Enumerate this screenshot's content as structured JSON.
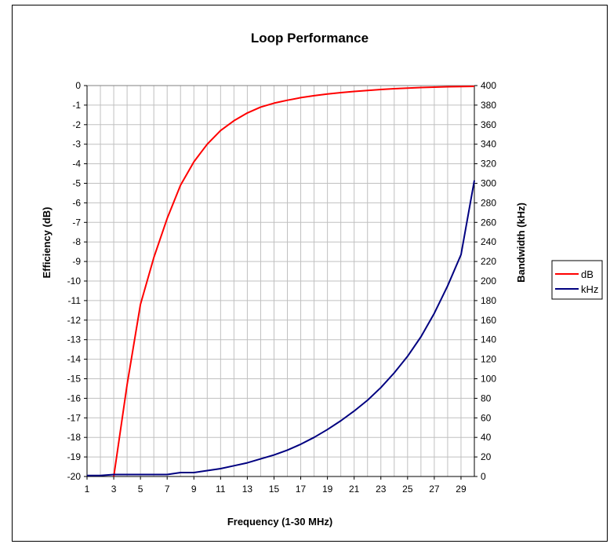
{
  "chart_data": {
    "type": "line",
    "title": "Loop Performance",
    "xlabel": "Frequency (1-30 MHz)",
    "ylabel_left": "Efficiency (dB)",
    "ylabel_right": "Bandwidth (kHz)",
    "x_ticks": [
      "1",
      "3",
      "5",
      "7",
      "9",
      "11",
      "13",
      "15",
      "17",
      "19",
      "21",
      "23",
      "25",
      "27",
      "29"
    ],
    "xlim": [
      1,
      30
    ],
    "ylim_left": [
      -20,
      0
    ],
    "ylim_right": [
      0,
      400
    ],
    "y_ticks_left": [
      "0",
      "-1",
      "-2",
      "-3",
      "-4",
      "-5",
      "-6",
      "-7",
      "-8",
      "-9",
      "-10",
      "-11",
      "-12",
      "-13",
      "-14",
      "-15",
      "-16",
      "-17",
      "-18",
      "-19",
      "-20"
    ],
    "y_ticks_right": [
      "400",
      "380",
      "360",
      "340",
      "320",
      "300",
      "280",
      "260",
      "240",
      "220",
      "200",
      "180",
      "160",
      "140",
      "120",
      "100",
      "80",
      "60",
      "40",
      "20",
      "0"
    ],
    "grid": true,
    "legend_position": "right",
    "series": [
      {
        "name": "dB",
        "axis": "left",
        "color": "#ff0000",
        "x": [
          3,
          4,
          5,
          6,
          7,
          8,
          9,
          10,
          11,
          12,
          13,
          14,
          15,
          16,
          17,
          18,
          19,
          20,
          21,
          22,
          23,
          24,
          25,
          26,
          27,
          28,
          29,
          30
        ],
        "y": [
          -20,
          -15.3,
          -11.2,
          -8.8,
          -6.8,
          -5.1,
          -3.9,
          -3.0,
          -2.3,
          -1.8,
          -1.4,
          -1.1,
          -0.9,
          -0.75,
          -0.62,
          -0.52,
          -0.43,
          -0.36,
          -0.3,
          -0.25,
          -0.2,
          -0.16,
          -0.13,
          -0.1,
          -0.08,
          -0.06,
          -0.05,
          -0.04
        ]
      },
      {
        "name": "kHz",
        "axis": "right",
        "color": "#000080",
        "x": [
          1,
          2,
          3,
          4,
          5,
          6,
          7,
          8,
          9,
          10,
          11,
          12,
          13,
          14,
          15,
          16,
          17,
          18,
          19,
          20,
          21,
          22,
          23,
          24,
          25,
          26,
          27,
          28,
          29,
          30
        ],
        "y": [
          1,
          1,
          2,
          2,
          2,
          2,
          2,
          4,
          4,
          6,
          8,
          11,
          14,
          18,
          22,
          27,
          33,
          40,
          48,
          57,
          67,
          78,
          91,
          106,
          123,
          143,
          167,
          195,
          227,
          303
        ]
      }
    ]
  }
}
